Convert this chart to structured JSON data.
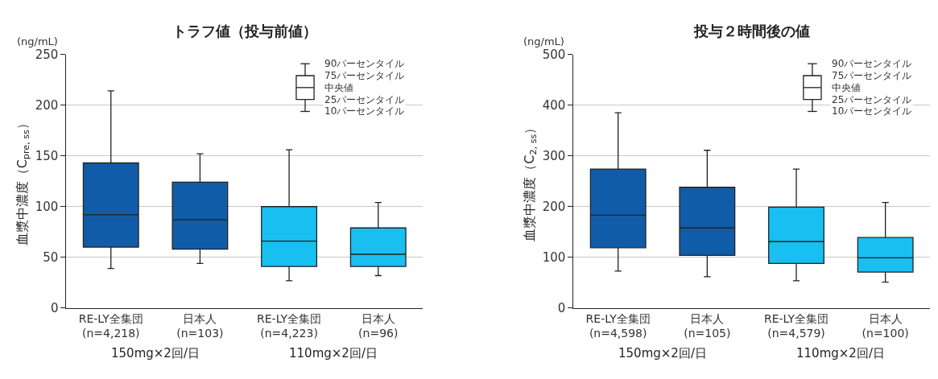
{
  "chart_data": [
    {
      "type": "box",
      "title": "トラフ値（投与前値）",
      "ylabel": "血漿中濃度（C$_{pre, ss}$）",
      "categories": [
        "RE-LY全集団\n(n=4,218)",
        "日本人\n(n=103)",
        "RE-LY全集団\n(n=4,223)",
        "日本人\n(n=96)"
      ],
      "colors": [
        "#115ca8",
        "#115ca8",
        "#18bff0",
        "#18bff0"
      ],
      "boxes": [
        {
          "low": 39,
          "q1": 60,
          "median": 92,
          "q3": 143,
          "high": 214
        },
        {
          "low": 44,
          "q1": 58,
          "median": 87,
          "q3": 124,
          "high": 152
        },
        {
          "low": 27,
          "q1": 41,
          "median": 66,
          "q3": 100,
          "high": 156
        },
        {
          "low": 32,
          "q1": 41,
          "median": 53,
          "q3": 79,
          "high": 104
        }
      ],
      "ylim": [
        0,
        250
      ],
      "yticks": [
        0,
        50,
        100,
        150,
        200,
        250
      ],
      "grid": "y",
      "annotations": [
        "(ng/mL)",
        "90パーセンタイル",
        "75パーセンタイル",
        "中央値",
        "25パーセンタイル",
        "10パーセンタイル",
        "150mg×2回/日",
        "110mg×2回/日"
      ]
    },
    {
      "type": "box",
      "title": "投与２時間後の値",
      "ylabel": "血漿中濃度（C$_{2, ss}$）",
      "categories": [
        "RE-LY全集団\n(n=4,598)",
        "日本人\n(n=105)",
        "RE-LY全集団\n(n=4,579)",
        "日本人\n(n=100)"
      ],
      "colors": [
        "#115ca8",
        "#115ca8",
        "#18bff0",
        "#18bff0"
      ],
      "boxes": [
        {
          "low": 73,
          "q1": 119,
          "median": 183,
          "q3": 274,
          "high": 385
        },
        {
          "low": 62,
          "q1": 104,
          "median": 158,
          "q3": 238,
          "high": 311
        },
        {
          "low": 54,
          "q1": 88,
          "median": 131,
          "q3": 199,
          "high": 274
        },
        {
          "low": 51,
          "q1": 71,
          "median": 99,
          "q3": 139,
          "high": 208
        }
      ],
      "ylim": [
        0,
        500
      ],
      "yticks": [
        0,
        100,
        200,
        300,
        400,
        500
      ],
      "grid": "y",
      "annotations": [
        "(ng/mL)",
        "90パーセンタイル",
        "75パーセンタイル",
        "中央値",
        "25パーセンタイル",
        "10パーセンタイル",
        "150mg×2回/日",
        "110mg×2回/日"
      ]
    }
  ]
}
